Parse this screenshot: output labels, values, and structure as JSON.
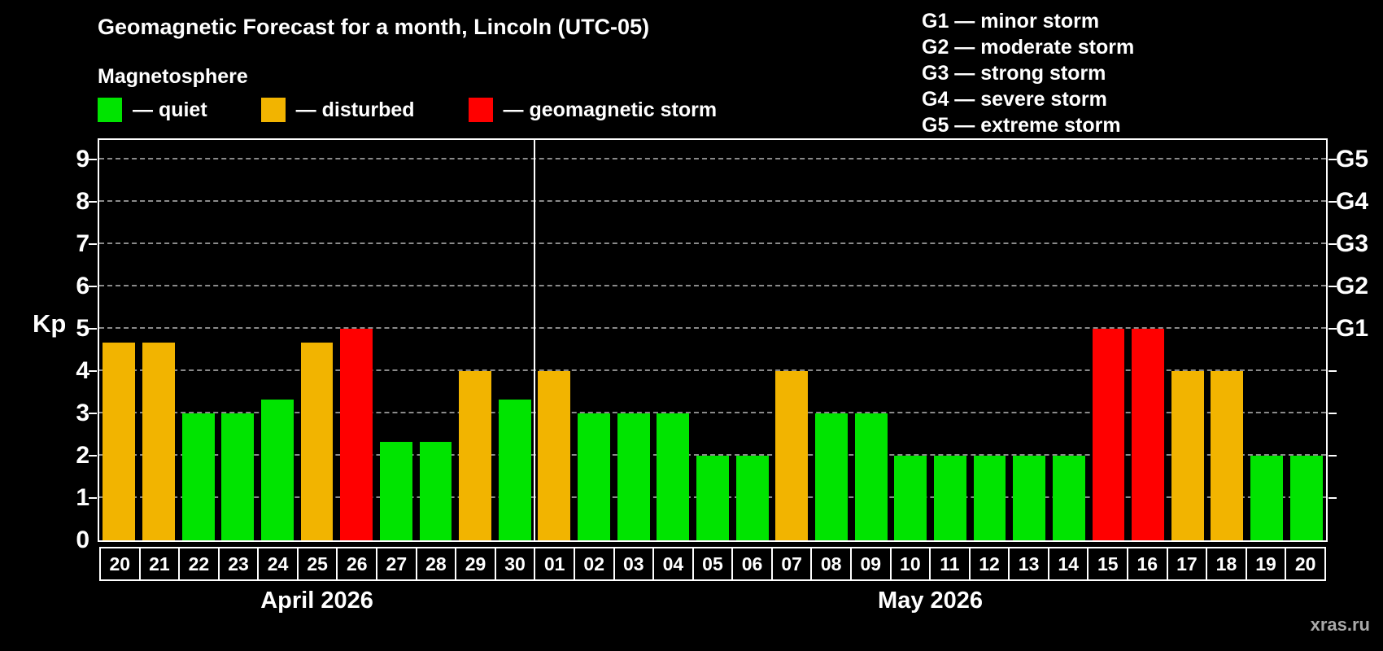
{
  "title": "Geomagnetic Forecast for a month, Lincoln (UTC-05)",
  "subtitle": "Magnetosphere",
  "legend": [
    {
      "key": "quiet",
      "label": "— quiet"
    },
    {
      "key": "disturbed",
      "label": "— disturbed"
    },
    {
      "key": "storm",
      "label": "— geomagnetic storm"
    }
  ],
  "g_legend": [
    "G1 — minor storm",
    "G2 — moderate storm",
    "G3 — strong storm",
    "G4 — severe storm",
    "G5 — extreme storm"
  ],
  "ylabel": "Kp",
  "watermark": "xras.ru",
  "colors": {
    "quiet": "#00e400",
    "disturbed": "#f2b400",
    "storm": "#ff0000",
    "grid": "#8a8a8a",
    "axis": "#ffffff",
    "background": "#000000",
    "text": "#ffffff"
  },
  "chart_data": {
    "type": "bar",
    "title": "Geomagnetic Forecast for a month, Lincoln (UTC-05)",
    "ylabel": "Kp",
    "ylim": [
      0,
      9
    ],
    "yticks": [
      0,
      1,
      2,
      3,
      4,
      5,
      6,
      7,
      8,
      9
    ],
    "grid": "dashed horizontal",
    "right_axis": [
      {
        "label": "G1",
        "kp": 5
      },
      {
        "label": "G2",
        "kp": 6
      },
      {
        "label": "G3",
        "kp": 7
      },
      {
        "label": "G4",
        "kp": 8
      },
      {
        "label": "G5",
        "kp": 9
      }
    ],
    "months": [
      {
        "label": "April 2026",
        "days": 11
      },
      {
        "label": "May 2026",
        "days": 20
      }
    ],
    "bars": [
      {
        "month": "April",
        "day": "20",
        "kp": 4.67,
        "status": "disturbed"
      },
      {
        "month": "April",
        "day": "21",
        "kp": 4.67,
        "status": "disturbed"
      },
      {
        "month": "April",
        "day": "22",
        "kp": 3.0,
        "status": "quiet"
      },
      {
        "month": "April",
        "day": "23",
        "kp": 3.0,
        "status": "quiet"
      },
      {
        "month": "April",
        "day": "24",
        "kp": 3.33,
        "status": "quiet"
      },
      {
        "month": "April",
        "day": "25",
        "kp": 4.67,
        "status": "disturbed"
      },
      {
        "month": "April",
        "day": "26",
        "kp": 5.0,
        "status": "storm"
      },
      {
        "month": "April",
        "day": "27",
        "kp": 2.33,
        "status": "quiet"
      },
      {
        "month": "April",
        "day": "28",
        "kp": 2.33,
        "status": "quiet"
      },
      {
        "month": "April",
        "day": "29",
        "kp": 4.0,
        "status": "disturbed"
      },
      {
        "month": "April",
        "day": "30",
        "kp": 3.33,
        "status": "quiet"
      },
      {
        "month": "May",
        "day": "01",
        "kp": 4.0,
        "status": "disturbed"
      },
      {
        "month": "May",
        "day": "02",
        "kp": 3.0,
        "status": "quiet"
      },
      {
        "month": "May",
        "day": "03",
        "kp": 3.0,
        "status": "quiet"
      },
      {
        "month": "May",
        "day": "04",
        "kp": 3.0,
        "status": "quiet"
      },
      {
        "month": "May",
        "day": "05",
        "kp": 2.0,
        "status": "quiet"
      },
      {
        "month": "May",
        "day": "06",
        "kp": 2.0,
        "status": "quiet"
      },
      {
        "month": "May",
        "day": "07",
        "kp": 4.0,
        "status": "disturbed"
      },
      {
        "month": "May",
        "day": "08",
        "kp": 3.0,
        "status": "quiet"
      },
      {
        "month": "May",
        "day": "09",
        "kp": 3.0,
        "status": "quiet"
      },
      {
        "month": "May",
        "day": "10",
        "kp": 2.0,
        "status": "quiet"
      },
      {
        "month": "May",
        "day": "11",
        "kp": 2.0,
        "status": "quiet"
      },
      {
        "month": "May",
        "day": "12",
        "kp": 2.0,
        "status": "quiet"
      },
      {
        "month": "May",
        "day": "13",
        "kp": 2.0,
        "status": "quiet"
      },
      {
        "month": "May",
        "day": "14",
        "kp": 2.0,
        "status": "quiet"
      },
      {
        "month": "May",
        "day": "15",
        "kp": 5.0,
        "status": "storm"
      },
      {
        "month": "May",
        "day": "16",
        "kp": 5.0,
        "status": "storm"
      },
      {
        "month": "May",
        "day": "17",
        "kp": 4.0,
        "status": "disturbed"
      },
      {
        "month": "May",
        "day": "18",
        "kp": 4.0,
        "status": "disturbed"
      },
      {
        "month": "May",
        "day": "19",
        "kp": 2.0,
        "status": "quiet"
      },
      {
        "month": "May",
        "day": "20",
        "kp": 2.0,
        "status": "quiet"
      }
    ]
  }
}
